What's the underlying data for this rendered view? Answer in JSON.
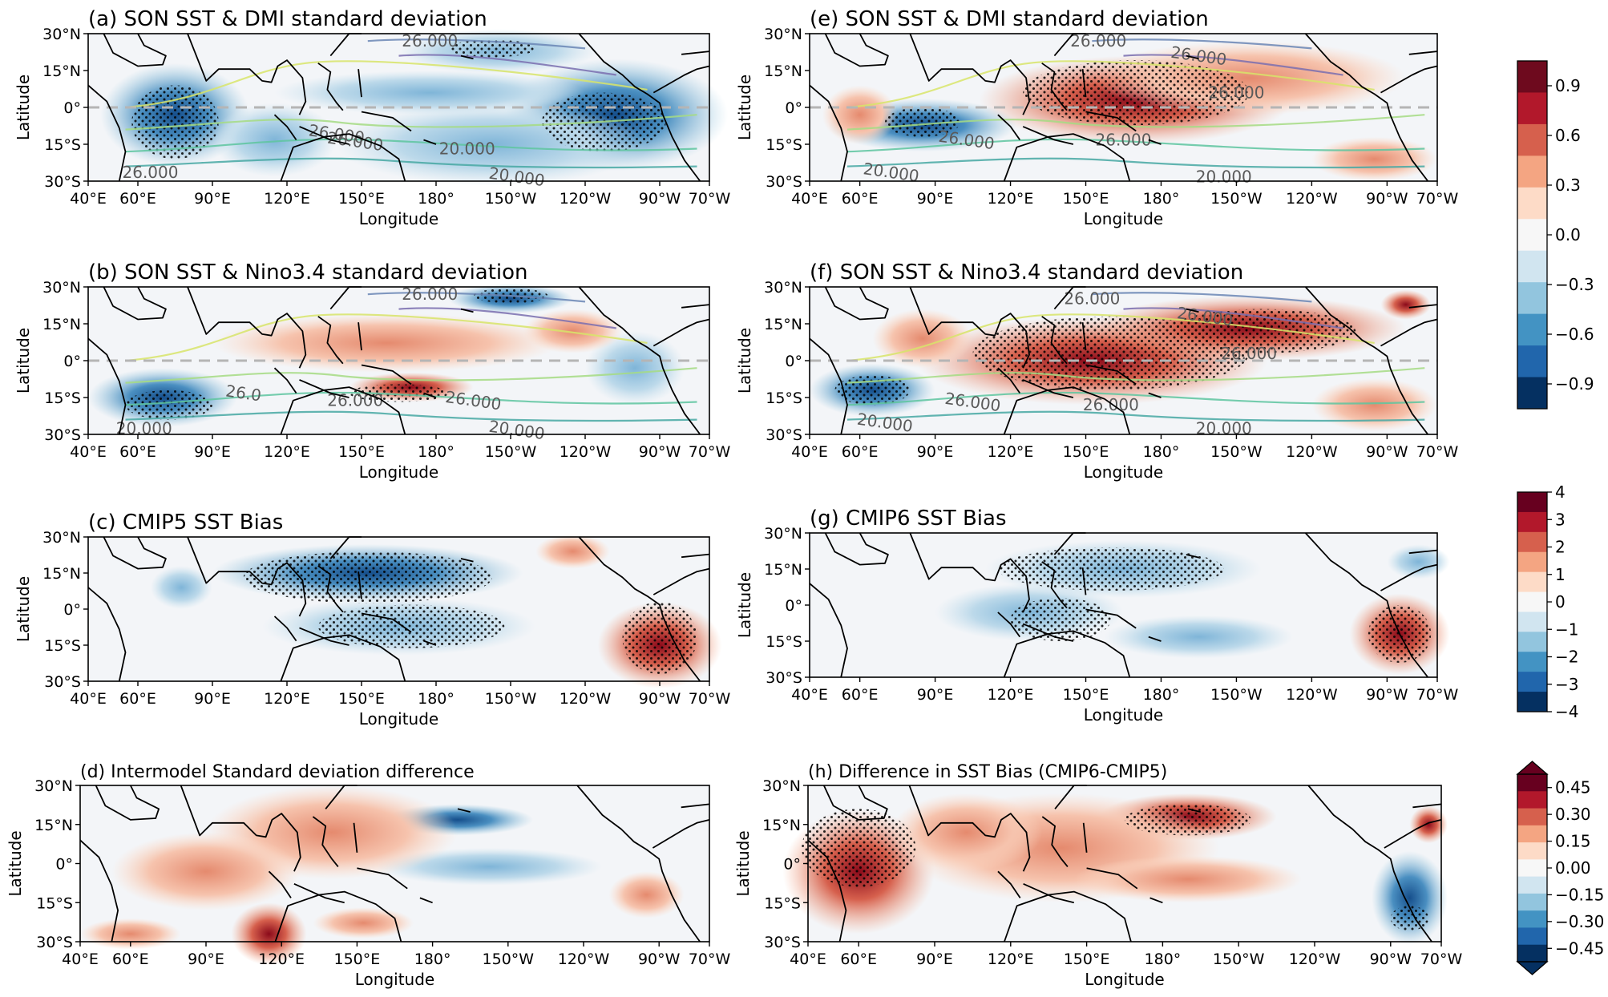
{
  "chart_data": [
    {
      "type": "heatmap",
      "panel": "a",
      "title": "(a) SON SST & DMI standard deviation",
      "xlabel": "Longitude",
      "ylabel": "Latitude",
      "xticks": [
        "40°E",
        "60°E",
        "90°E",
        "120°E",
        "150°E",
        "180°",
        "150°W",
        "120°W",
        "90°W",
        "70°W"
      ],
      "yticks": [
        "30°N",
        "15°N",
        "0°",
        "15°S",
        "30°S"
      ],
      "contour_labels": [
        "26.000",
        "26.000",
        "26.000",
        "26.000",
        "20.000",
        "20.000"
      ],
      "xlim": [
        40,
        290
      ],
      "ylim": [
        -30,
        30
      ],
      "colorbar": "cb1",
      "stippling": true
    },
    {
      "type": "heatmap",
      "panel": "b",
      "title": "(b) SON SST & Nino3.4 standard deviation",
      "xlabel": "Longitude",
      "ylabel": "Latitude",
      "xticks": [
        "40°E",
        "60°E",
        "90°E",
        "120°E",
        "150°E",
        "180°",
        "150°W",
        "120°W",
        "90°W",
        "70°W"
      ],
      "yticks": [
        "30°N",
        "15°N",
        "0°",
        "15°S",
        "30°S"
      ],
      "contour_labels": [
        "26.000",
        "26.0",
        "26.000",
        "26.000",
        "20.000",
        "20.000"
      ],
      "xlim": [
        40,
        290
      ],
      "ylim": [
        -30,
        30
      ],
      "colorbar": "cb1",
      "stippling": true
    },
    {
      "type": "heatmap",
      "panel": "c",
      "title": "(c) CMIP5 SST Bias",
      "xlabel": "Longitude",
      "ylabel": "Latitude",
      "xticks": [
        "40°E",
        "60°E",
        "90°E",
        "120°E",
        "150°E",
        "180°",
        "150°W",
        "120°W",
        "90°W",
        "70°W"
      ],
      "yticks": [
        "30°N",
        "15°N",
        "0°",
        "15°S",
        "30°S"
      ],
      "contour_labels": [],
      "xlim": [
        40,
        290
      ],
      "ylim": [
        -30,
        30
      ],
      "colorbar": "cb2",
      "stippling": true
    },
    {
      "type": "heatmap",
      "panel": "d",
      "title": "(d) Intermodel Standard deviation difference",
      "xlabel": "Longitude",
      "ylabel": "Latitude",
      "xticks": [
        "40°E",
        "60°E",
        "90°E",
        "120°E",
        "150°E",
        "180°",
        "150°W",
        "120°W",
        "90°W",
        "70°W"
      ],
      "yticks": [
        "30°N",
        "15°N",
        "0°",
        "15°S",
        "30°S"
      ],
      "contour_labels": [],
      "xlim": [
        40,
        290
      ],
      "ylim": [
        -30,
        30
      ],
      "colorbar": "cb3",
      "stippling": false
    },
    {
      "type": "heatmap",
      "panel": "e",
      "title": "(e) SON SST & DMI standard deviation",
      "xlabel": "Longitude",
      "ylabel": "Latitude",
      "xticks": [
        "40°E",
        "60°E",
        "90°E",
        "120°E",
        "150°E",
        "180°",
        "150°W",
        "120°W",
        "90°W",
        "70°W"
      ],
      "yticks": [
        "30°N",
        "15°N",
        "0°",
        "15°S",
        "30°S"
      ],
      "contour_labels": [
        "26.000",
        "26.000",
        "26.000",
        "26.000",
        "26.000",
        "20.000",
        "20.000"
      ],
      "xlim": [
        40,
        290
      ],
      "ylim": [
        -30,
        30
      ],
      "colorbar": "cb1",
      "stippling": true
    },
    {
      "type": "heatmap",
      "panel": "f",
      "title": "(f) SON SST & Nino3.4 standard deviation",
      "xlabel": "Longitude",
      "ylabel": "Latitude",
      "xticks": [
        "40°E",
        "60°E",
        "90°E",
        "120°E",
        "150°E",
        "180°",
        "150°W",
        "120°W",
        "90°W",
        "70°W"
      ],
      "yticks": [
        "30°N",
        "15°N",
        "0°",
        "15°S",
        "30°S"
      ],
      "contour_labels": [
        "26.000",
        "26.000",
        "26.000",
        "26.000",
        "26.000",
        "20.000",
        "20.000"
      ],
      "xlim": [
        40,
        290
      ],
      "ylim": [
        -30,
        30
      ],
      "colorbar": "cb1",
      "stippling": true
    },
    {
      "type": "heatmap",
      "panel": "g",
      "title": "(g) CMIP6 SST Bias",
      "xlabel": "Longitude",
      "ylabel": "Latitude",
      "xticks": [
        "40°E",
        "60°E",
        "90°E",
        "120°E",
        "150°E",
        "180°",
        "150°W",
        "120°W",
        "90°W",
        "70°W"
      ],
      "yticks": [
        "30°N",
        "15°N",
        "0°",
        "15°S",
        "30°S"
      ],
      "contour_labels": [],
      "xlim": [
        40,
        290
      ],
      "ylim": [
        -30,
        30
      ],
      "colorbar": "cb2",
      "stippling": true
    },
    {
      "type": "heatmap",
      "panel": "h",
      "title": "(h) Difference in SST Bias (CMIP6-CMIP5)",
      "xlabel": "Longitude",
      "ylabel": "Latitude",
      "xticks": [
        "40°E",
        "60°E",
        "90°E",
        "120°E",
        "150°E",
        "180°",
        "150°W",
        "120°W",
        "90°W",
        "70°W"
      ],
      "yticks": [
        "30°N",
        "15°N",
        "0°",
        "15°S",
        "30°S"
      ],
      "contour_labels": [],
      "xlim": [
        40,
        290
      ],
      "ylim": [
        -30,
        30
      ],
      "colorbar": "cb3",
      "stippling": true
    }
  ],
  "colorbars": [
    {
      "id": "cb1",
      "range": [
        -1,
        1
      ],
      "ticks": [
        "0.9",
        "0.6",
        "0.3",
        "0.0",
        "−0.3",
        "−0.6",
        "−0.9"
      ],
      "colors": [
        "#6e0a1e",
        "#b2182b",
        "#d6604d",
        "#f4a582",
        "#fddbc7",
        "#f7f7f7",
        "#d1e5f0",
        "#92c5de",
        "#4393c3",
        "#2166ac",
        "#053061"
      ]
    },
    {
      "id": "cb2",
      "range": [
        -4,
        4
      ],
      "ticks": [
        "4",
        "3",
        "2",
        "1",
        "0",
        "−1",
        "−2",
        "−3",
        "−4"
      ],
      "colors": [
        "#67001f",
        "#b2182b",
        "#d6604d",
        "#f4a582",
        "#fddbc7",
        "#f7f7f7",
        "#d1e5f0",
        "#92c5de",
        "#4393c3",
        "#2166ac",
        "#053061"
      ]
    },
    {
      "id": "cb3",
      "range": [
        -0.5,
        0.5
      ],
      "ticks": [
        "0.45",
        "0.30",
        "0.15",
        "0.00",
        "−0.15",
        "−0.30",
        "−0.45"
      ],
      "colors": [
        "#67001f",
        "#b2182b",
        "#d6604d",
        "#f4a582",
        "#fddbc7",
        "#f7f7f7",
        "#d1e5f0",
        "#92c5de",
        "#4393c3",
        "#2166ac",
        "#053061"
      ]
    }
  ]
}
